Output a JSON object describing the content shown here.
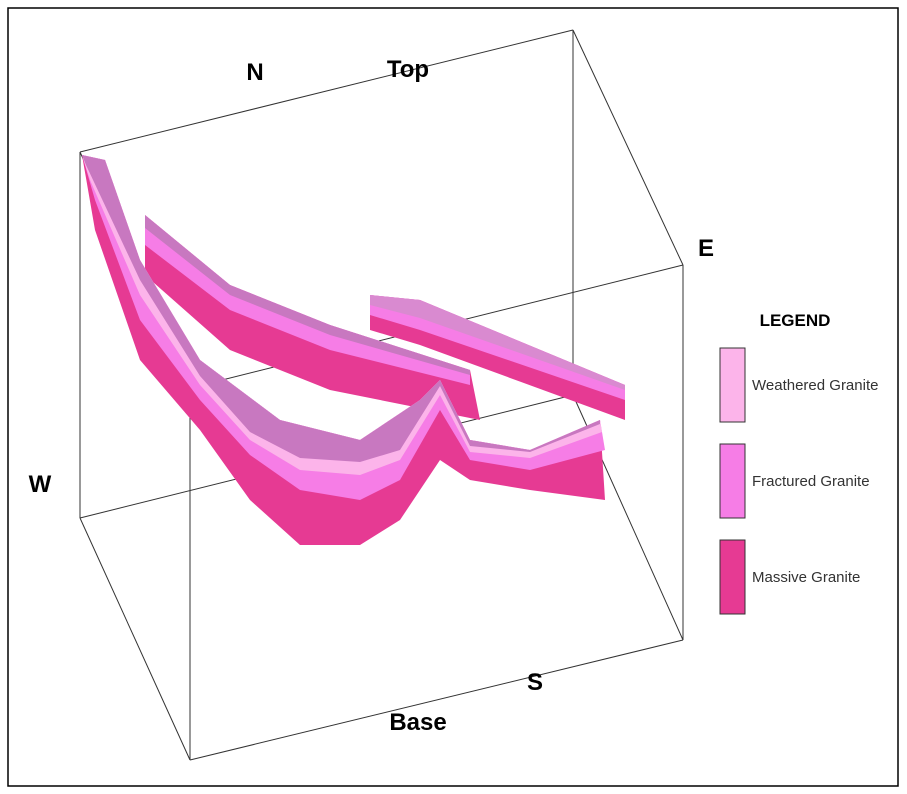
{
  "directions": {
    "north": "N",
    "top": "Top",
    "east": "E",
    "west": "W",
    "south": "S",
    "base": "Base"
  },
  "legend": {
    "title": "LEGEND",
    "items": [
      {
        "label": "Weathered Granite",
        "color": "#fcb4ea"
      },
      {
        "label": "Fractured Granite",
        "color": "#f67de6"
      },
      {
        "label": "Massive Granite",
        "color": "#e63a93"
      }
    ]
  }
}
